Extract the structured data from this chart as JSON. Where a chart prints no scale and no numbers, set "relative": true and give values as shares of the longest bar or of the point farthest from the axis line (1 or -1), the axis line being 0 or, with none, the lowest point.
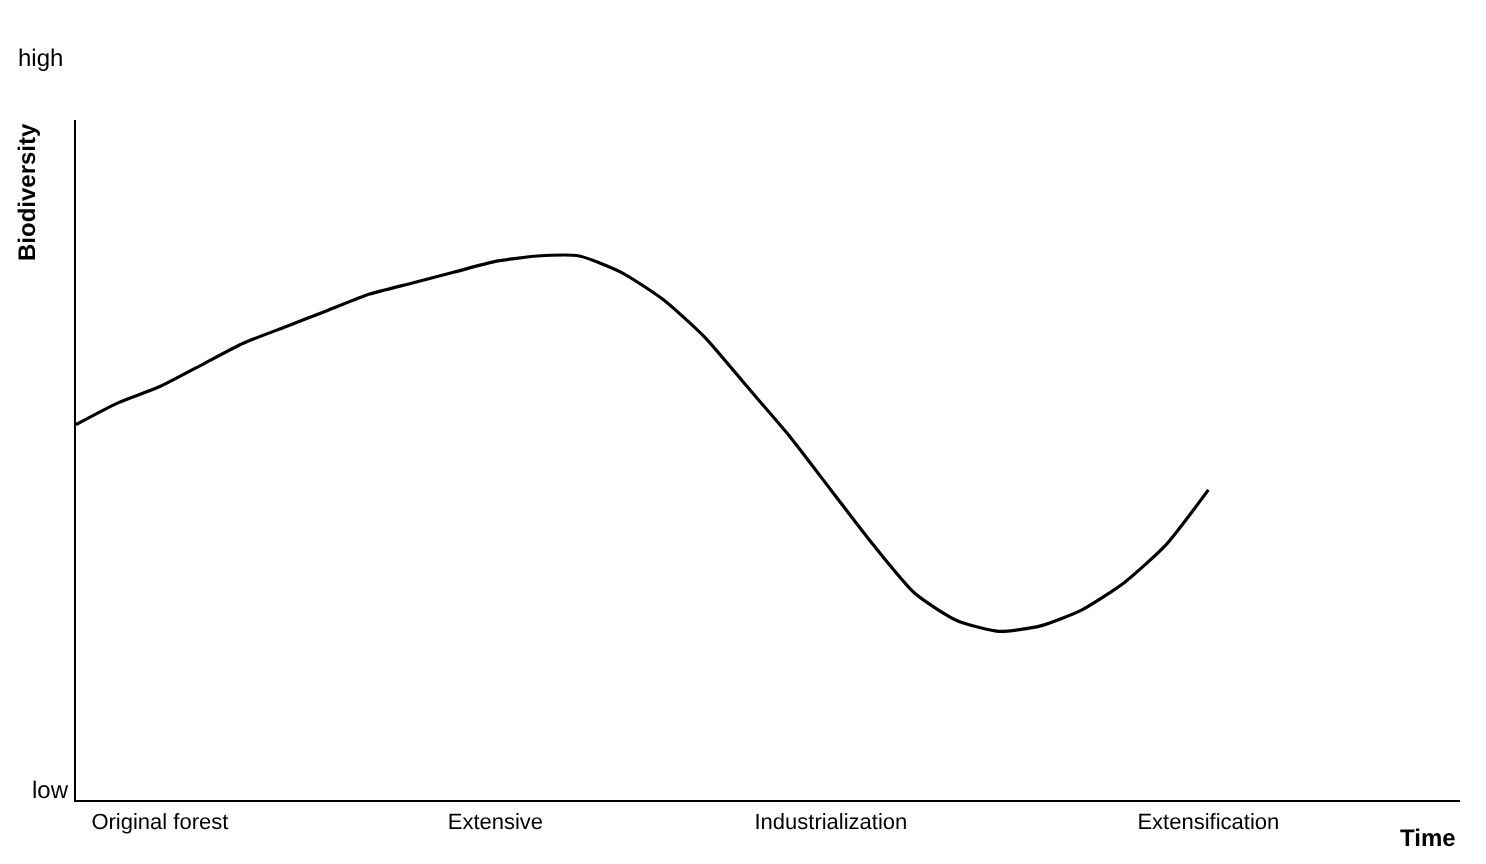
{
  "chart_data": {
    "type": "line",
    "relative": true,
    "xlabel": "Time",
    "ylabel": "Biodiversity",
    "annotations": [
      "high",
      "low"
    ],
    "categories": [
      null,
      null,
      "Original forest",
      null,
      null,
      null,
      null,
      null,
      null,
      null,
      "Extensive",
      null,
      null,
      null,
      null,
      null,
      null,
      null,
      "Industrialization",
      null,
      null,
      null,
      null,
      null,
      null,
      null,
      null,
      "Extensification",
      null,
      null,
      null,
      null,
      null,
      null
    ],
    "series": [
      {
        "color": "#000000",
        "values": [
          0.69,
          0.73,
          0.76,
          0.8,
          0.84,
          0.87,
          0.9,
          0.93,
          0.95,
          0.97,
          0.99,
          1.0,
          1.0,
          0.97,
          0.92,
          0.85,
          0.76,
          0.67,
          0.57,
          0.47,
          0.38,
          0.33,
          0.31,
          0.32,
          0.35,
          0.4,
          0.47,
          0.57,
          null,
          null,
          null,
          null,
          null,
          null
        ]
      }
    ],
    "grid": false,
    "marker": "none",
    "line_style": "solid"
  }
}
